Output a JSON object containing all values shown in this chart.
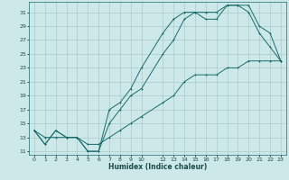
{
  "xlabel": "Humidex (Indice chaleur)",
  "bg_color": "#cce8e8",
  "grid_color": "#aacccc",
  "line_color": "#1a6b6b",
  "xlim": [
    -0.5,
    23.5
  ],
  "ylim": [
    10.5,
    32.5
  ],
  "xticks": [
    0,
    1,
    2,
    3,
    4,
    5,
    6,
    7,
    8,
    9,
    10,
    12,
    13,
    14,
    15,
    16,
    17,
    18,
    19,
    20,
    21,
    22,
    23
  ],
  "yticks": [
    11,
    13,
    15,
    17,
    19,
    21,
    23,
    25,
    27,
    29,
    31
  ],
  "line1_x": [
    0,
    1,
    2,
    3,
    4,
    5,
    6,
    7,
    8,
    9,
    10,
    12,
    13,
    14,
    15,
    16,
    17,
    18,
    19,
    20,
    21,
    22,
    23
  ],
  "line1_y": [
    14,
    12,
    14,
    13,
    13,
    11,
    11,
    17,
    18,
    20,
    23,
    28,
    30,
    31,
    31,
    30,
    30,
    32,
    32,
    31,
    28,
    26,
    24
  ],
  "line2_x": [
    0,
    1,
    2,
    3,
    4,
    5,
    6,
    7,
    8,
    9,
    10,
    12,
    13,
    14,
    15,
    16,
    17,
    18,
    19,
    20,
    21,
    22,
    23
  ],
  "line2_y": [
    14,
    12,
    14,
    13,
    13,
    11,
    11,
    15,
    17,
    19,
    20,
    25,
    27,
    30,
    31,
    31,
    31,
    32,
    32,
    32,
    29,
    28,
    24
  ],
  "line3_x": [
    0,
    1,
    2,
    3,
    4,
    5,
    6,
    7,
    8,
    9,
    10,
    12,
    13,
    14,
    15,
    16,
    17,
    18,
    19,
    20,
    21,
    22,
    23
  ],
  "line3_y": [
    14,
    13,
    13,
    13,
    13,
    12,
    12,
    13,
    14,
    15,
    16,
    18,
    19,
    21,
    22,
    22,
    22,
    23,
    23,
    24,
    24,
    24,
    24
  ]
}
